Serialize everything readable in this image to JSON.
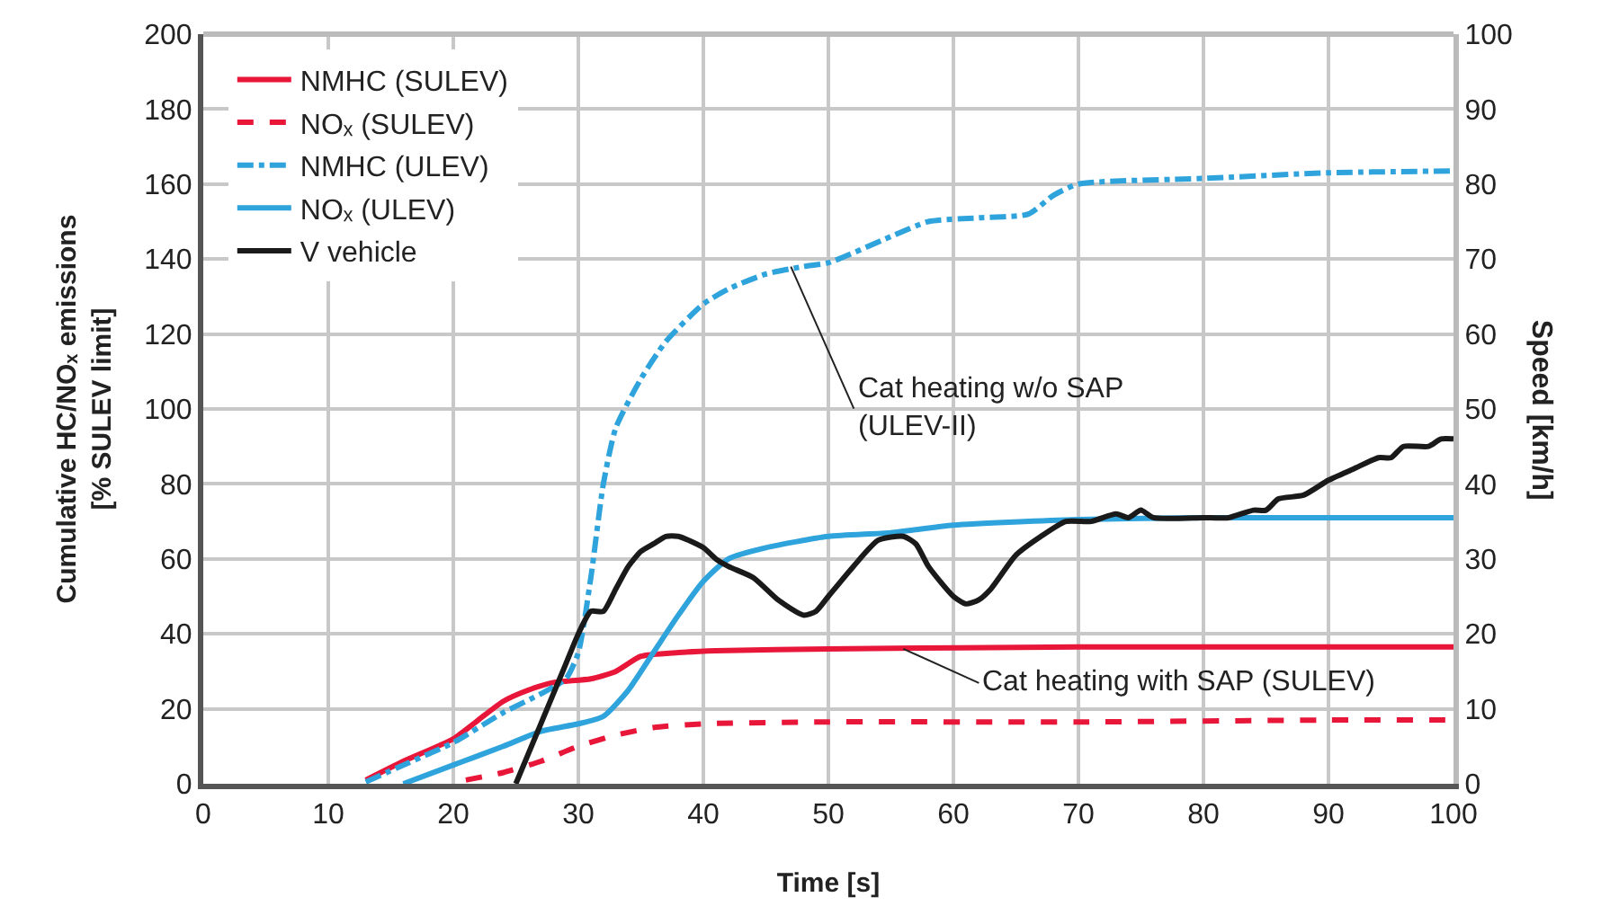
{
  "chart_data": {
    "type": "line",
    "xlabel": "Time [s]",
    "ylabel": "Cumulative HC/NOₓ emissions\n[% SULEV limit]",
    "y2label": "Speed [km/h]",
    "xlim": [
      0,
      100
    ],
    "xticks": [
      0,
      10,
      20,
      30,
      40,
      50,
      60,
      70,
      80,
      90,
      100
    ],
    "ylim": [
      0,
      200
    ],
    "yticks": [
      0,
      20,
      40,
      60,
      80,
      100,
      120,
      140,
      160,
      180,
      200
    ],
    "y2lim": [
      0,
      100
    ],
    "y2ticks": [
      0,
      10,
      20,
      30,
      40,
      50,
      60,
      70,
      80,
      90,
      100
    ],
    "grid": true,
    "legend": "top left",
    "marker": "none",
    "series": [
      {
        "name": "NMHC (SULEV)",
        "color": "#e8173a",
        "line_style": "solid",
        "x": [
          13,
          16,
          20,
          22,
          24,
          26,
          28,
          31,
          33,
          35,
          38,
          41,
          50,
          70,
          100
        ],
        "values": [
          1,
          6,
          12,
          17,
          22,
          25,
          27,
          28,
          30,
          34,
          35,
          35.5,
          36,
          36.5,
          36.5
        ]
      },
      {
        "name": "NOₓ (SULEV)",
        "color": "#e8173a",
        "line_style": "dashed",
        "x": [
          21,
          24,
          27,
          30,
          33,
          36,
          40,
          50,
          70,
          90,
          100
        ],
        "values": [
          1,
          3,
          6,
          10,
          13,
          15,
          16,
          16.5,
          16.5,
          17,
          17
        ]
      },
      {
        "name": "NMHC (ULEV)",
        "color": "#2ea3dc",
        "line_style": "dashdot",
        "x": [
          13,
          16,
          20,
          24,
          27,
          29,
          30,
          31,
          32,
          33,
          35,
          37,
          40,
          42,
          45,
          48,
          50,
          55,
          58,
          62,
          66,
          68,
          70,
          80,
          90,
          100
        ],
        "values": [
          0.5,
          5,
          11,
          19,
          24,
          28,
          35,
          55,
          80,
          95,
          108,
          118,
          128,
          132,
          136,
          138,
          139,
          146,
          150,
          151,
          152,
          157,
          160,
          161.5,
          163,
          163.5
        ]
      },
      {
        "name": "NOₓ (ULEV)",
        "color": "#2ea3dc",
        "line_style": "solid",
        "x": [
          16,
          20,
          24,
          27,
          30,
          32,
          34,
          36,
          38,
          40,
          42,
          45,
          50,
          55,
          60,
          70,
          80,
          100
        ],
        "values": [
          0,
          5,
          10,
          14,
          16,
          18,
          25,
          35,
          45,
          54,
          60,
          63,
          66,
          67,
          69,
          70.5,
          71,
          71
        ]
      },
      {
        "name": "V vehicle",
        "color": "#1a1a1a",
        "line_style": "solid",
        "axis": "y2",
        "x": [
          25,
          27,
          29,
          30,
          31,
          32,
          33,
          34,
          35,
          36,
          37,
          38,
          40,
          41,
          42,
          44,
          46,
          48,
          49,
          50,
          52,
          54,
          56,
          57,
          58,
          60,
          61,
          62,
          63,
          65,
          67,
          69,
          71,
          73,
          74,
          75,
          76,
          80,
          82,
          84,
          85,
          86,
          88,
          90,
          92,
          94,
          95,
          96,
          98,
          99,
          100
        ],
        "values": [
          0,
          8,
          16,
          20,
          23,
          23,
          26,
          29,
          31,
          32,
          33,
          33,
          31.5,
          30,
          29,
          27.5,
          24.5,
          22.5,
          23,
          25,
          29,
          32.5,
          33,
          32,
          29,
          25,
          24,
          24.5,
          26,
          30.5,
          33,
          35,
          35,
          36,
          35.5,
          36.5,
          35.5,
          35.5,
          35.5,
          36.5,
          36.5,
          38,
          38.5,
          40.5,
          42,
          43.5,
          43.5,
          45,
          45,
          46,
          46
        ]
      }
    ],
    "annotations": [
      {
        "text": "Cat heating w/o SAP\n(ULEV-II)",
        "x": 47,
        "y": 138
      },
      {
        "text": "Cat heating with SAP (SULEV)",
        "x": 56,
        "y": 36
      }
    ]
  }
}
